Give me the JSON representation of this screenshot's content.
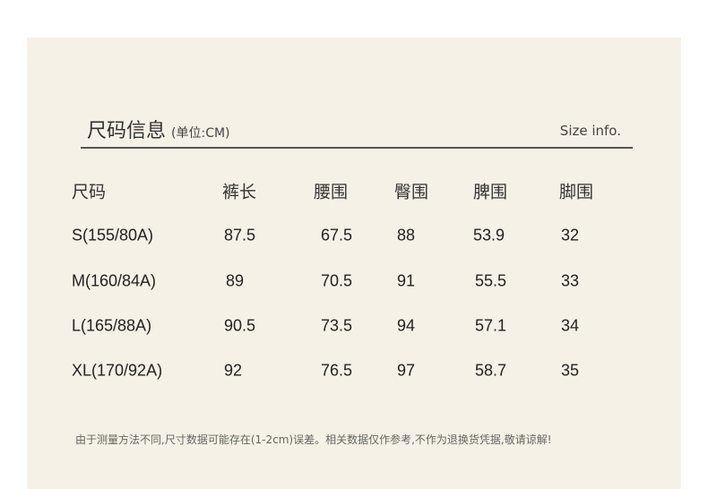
{
  "header": {
    "title": "尺码信息",
    "unit": "(单位:CM)",
    "english": "Size info."
  },
  "table": {
    "columns": [
      "尺码",
      "裤长",
      "腰围",
      "臀围",
      "脾围",
      "脚围"
    ],
    "rows": [
      [
        "S(155/80A)",
        "87.5",
        "67.5",
        "88",
        "53.9",
        "32"
      ],
      [
        "M(160/84A)",
        "89",
        "70.5",
        "91",
        "55.5",
        "33"
      ],
      [
        "L(165/88A)",
        "90.5",
        "73.5",
        "94",
        "57.1",
        "34"
      ],
      [
        "XL(170/92A)",
        "92",
        "76.5",
        "97",
        "58.7",
        "35"
      ]
    ]
  },
  "note": "由于测量方法不同,尺寸数据可能存在(1-2cm)误差。相关数据仅作参考,不作为退换货凭据,敬请谅解!",
  "colors": {
    "panel": "#f6f1e6",
    "rule": "#555555"
  }
}
